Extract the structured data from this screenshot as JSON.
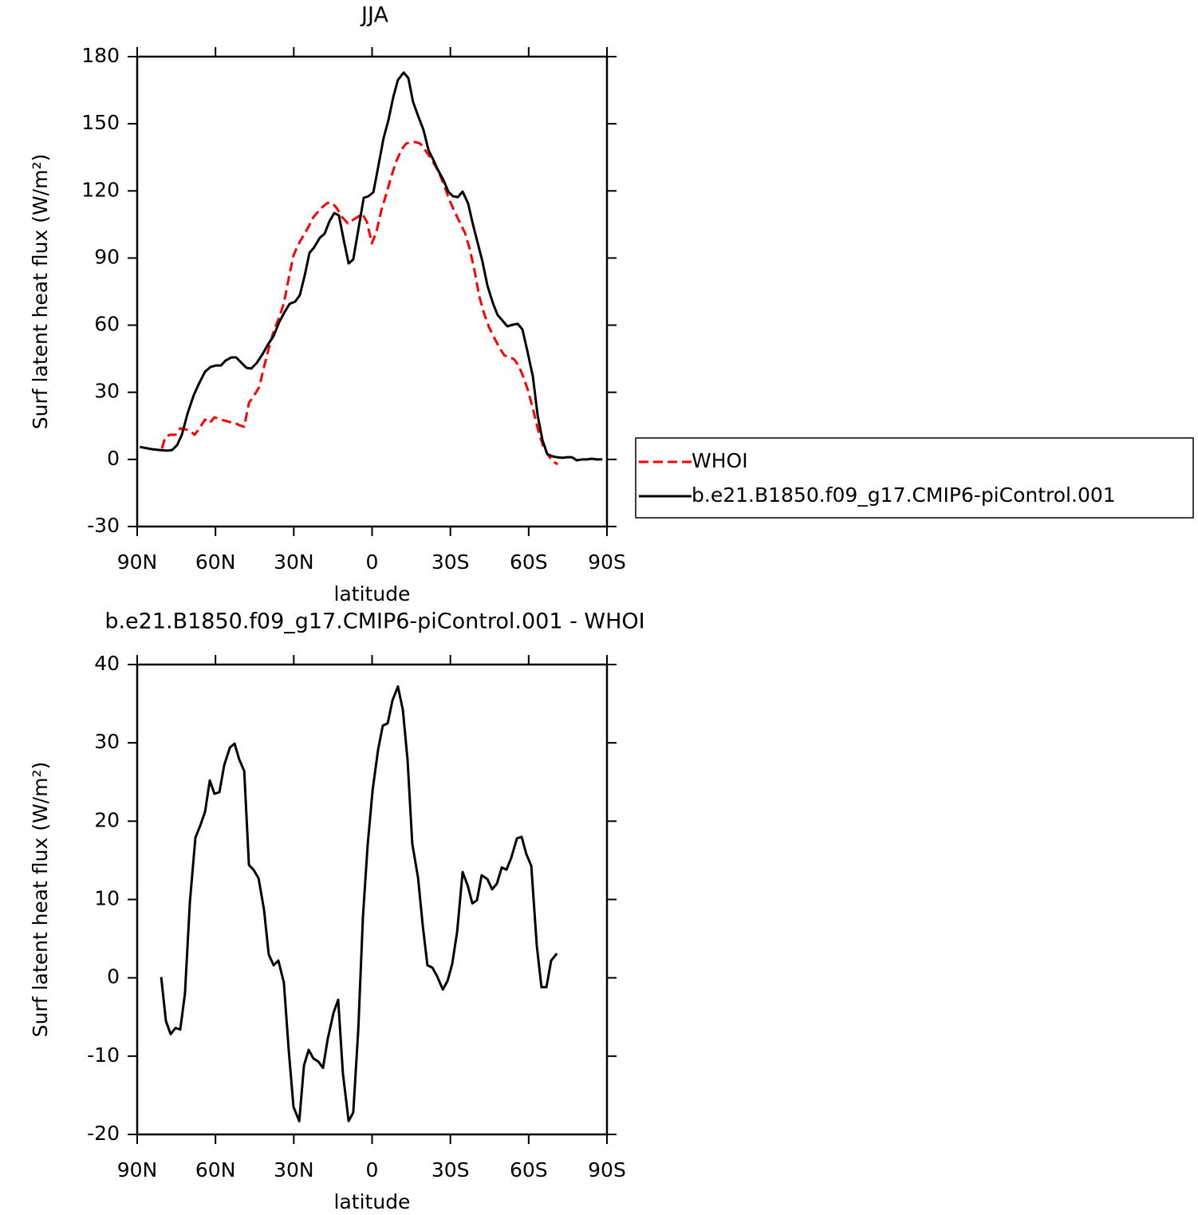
{
  "chart_data": [
    {
      "type": "line",
      "title": "JJA",
      "x_label": "latitude",
      "y_label": "Surf latent heat flux (W/m²)",
      "xlim": [
        90,
        -90
      ],
      "xticks": [
        {
          "value": 90,
          "label": "90N"
        },
        {
          "value": 60,
          "label": "60N"
        },
        {
          "value": 30,
          "label": "30N"
        },
        0,
        {
          "value": -30,
          "label": "30S"
        },
        {
          "value": -60,
          "label": "60S"
        },
        {
          "value": -90,
          "label": "90S"
        }
      ],
      "ylim": [
        -30,
        180
      ],
      "yticks": [
        -30,
        0,
        30,
        60,
        90,
        120,
        150,
        180
      ],
      "legend": "right",
      "series": [
        {
          "name": "WHOI",
          "color": "#ff0000",
          "line_style": "dashed",
          "x": [
            80.5,
            79.3,
            77.5,
            75.3,
            73.5,
            71.7,
            69.8,
            68.0,
            66.2,
            64.0,
            62.2,
            60.4,
            58.5,
            56.7,
            54.5,
            52.7,
            50.9,
            49.0,
            47.2,
            45.4,
            43.2,
            41.4,
            39.6,
            37.7,
            35.6,
            33.8,
            31.9,
            30.1,
            28.2,
            26.4,
            24.3,
            22.5,
            20.6,
            18.8,
            17.0,
            15.1,
            13.3,
            11.5,
            9.3,
            7.5,
            5.6,
            3.8,
            2.0,
            0.1,
            -1.7,
            -3.5,
            -5.7,
            -7.5,
            -9.3,
            -11.2,
            -13.0,
            -14.8,
            -16.7,
            -18.5,
            -20.3,
            -22.5,
            -24.3,
            -26.1,
            -28.0,
            -29.8,
            -31.6,
            -33.8,
            -35.6,
            -37.4,
            -39.3,
            -41.1,
            -42.9,
            -44.8,
            -46.6,
            -48.8,
            -50.6,
            -52.4,
            -54.3,
            -56.1,
            -57.9,
            -59.8,
            -61.9,
            -63.7,
            -65.6,
            -67.4,
            -69.2,
            -71.1
          ],
          "values": [
            4.9,
            9.9,
            11,
            11,
            13.9,
            13.5,
            12.8,
            11,
            13.9,
            17.8,
            16.3,
            18.8,
            18.1,
            17.4,
            16.7,
            16.3,
            15.3,
            14.6,
            25.3,
            28.1,
            32.4,
            41.3,
            49.5,
            57.3,
            63.4,
            69.8,
            81.2,
            91.2,
            96.2,
            99.8,
            104.1,
            108.3,
            110.8,
            113,
            114.7,
            114.4,
            111.9,
            108.3,
            105.5,
            106.9,
            108.3,
            109.8,
            106.2,
            96.5,
            101.9,
            111.2,
            119.7,
            126.9,
            133.3,
            138.3,
            141.1,
            141.8,
            141.8,
            141.1,
            138.3,
            134.7,
            131.1,
            126.9,
            121.2,
            115.5,
            110.8,
            105.5,
            101.2,
            94.1,
            84.1,
            72.7,
            65.2,
            59.1,
            54.8,
            49.9,
            46.6,
            45.6,
            44.9,
            42,
            37,
            30.6,
            21.3,
            12.8,
            5.7,
            2.1,
            -0.8,
            -2.2
          ]
        },
        {
          "name": "b.e21.B1850.f09_g17.CMIP6-piControl.001",
          "color": "#000000",
          "line_style": "solid",
          "x": [
            89,
            84.5,
            81.4,
            78.4,
            76.6,
            74.7,
            72.9,
            70.7,
            68.3,
            66.2,
            64.0,
            61.9,
            59.7,
            57.9,
            56.1,
            53.9,
            52.1,
            50.0,
            48.1,
            46.3,
            44.2,
            42.0,
            39.9,
            37.7,
            35.6,
            33.5,
            31.6,
            29.5,
            27.7,
            25.8,
            24.0,
            22.2,
            20.0,
            18.2,
            16.3,
            14.5,
            12.7,
            10.8,
            9.0,
            7.2,
            5.3,
            3.2,
            1.4,
            -0.5,
            -2.3,
            -4.4,
            -6.3,
            -8.1,
            -9.9,
            -12.1,
            -13.9,
            -15.7,
            -17.6,
            -19.7,
            -21.6,
            -23.4,
            -25.2,
            -27.4,
            -29.2,
            -31.0,
            -32.9,
            -34.7,
            -36.8,
            -38.7,
            -40.5,
            -42.3,
            -44.2,
            -46.3,
            -48.1,
            -50.0,
            -51.8,
            -54.0,
            -55.8,
            -57.6,
            -59.5,
            -61.6,
            -63.4,
            -65.3,
            -67.1,
            -69.0,
            -70.8,
            -72.9,
            -74.7,
            -76.6,
            -78.4,
            -80.5,
            -82.4,
            -84.2,
            -86.0,
            -88.2
          ],
          "values": [
            5.6,
            4.6,
            4.2,
            3.9,
            4.2,
            6.4,
            11,
            20.6,
            28.8,
            34.2,
            39.2,
            41.3,
            42,
            42,
            44.2,
            45.6,
            45.6,
            43.1,
            40.9,
            40.6,
            43.1,
            47,
            51.3,
            55.2,
            61.3,
            65.9,
            69.5,
            70.5,
            73.4,
            82.3,
            92.3,
            94.8,
            99.1,
            100.8,
            106.5,
            110.1,
            109,
            97.6,
            87.6,
            89.4,
            102.6,
            116.9,
            117.6,
            119.4,
            130.4,
            143.6,
            151.8,
            161.8,
            169.6,
            172.9,
            170.4,
            159.7,
            153.6,
            147.2,
            138.3,
            134,
            129.4,
            124.7,
            119.7,
            117.6,
            117.2,
            119.7,
            114.4,
            104.8,
            96.6,
            88.4,
            77.7,
            69.8,
            64.5,
            62,
            59.5,
            60.2,
            60.6,
            58.1,
            48.4,
            37,
            19.9,
            8.5,
            2.4,
            1.4,
            1,
            0.7,
            1,
            1,
            -0.4,
            0,
            0,
            0.3,
            0,
            0
          ]
        }
      ]
    },
    {
      "type": "line",
      "title": "b.e21.B1850.f09_g17.CMIP6-piControl.001 - WHOI",
      "x_label": "latitude",
      "y_label": "Surf latent heat flux (W/m²)",
      "xlim": [
        90,
        -90
      ],
      "xticks": [
        {
          "value": 90,
          "label": "90N"
        },
        {
          "value": 60,
          "label": "60N"
        },
        {
          "value": 30,
          "label": "30N"
        },
        0,
        {
          "value": -30,
          "label": "30S"
        },
        {
          "value": -60,
          "label": "60S"
        },
        {
          "value": -90,
          "label": "90S"
        }
      ],
      "ylim": [
        -20,
        40
      ],
      "yticks": [
        -20,
        -10,
        0,
        10,
        20,
        30,
        40
      ],
      "series": [
        {
          "color": "#000000",
          "line_style": "solid",
          "x": [
            80.8,
            79.0,
            77.2,
            75.3,
            73.5,
            71.7,
            69.8,
            67.7,
            65.9,
            64.0,
            62.2,
            60.4,
            58.5,
            56.7,
            54.5,
            52.7,
            50.9,
            49.0,
            47.2,
            45.4,
            43.5,
            41.4,
            39.6,
            37.7,
            35.9,
            33.8,
            31.9,
            30.1,
            27.9,
            26.1,
            24.3,
            22.5,
            20.6,
            18.8,
            17.0,
            14.8,
            13.0,
            11.2,
            9.0,
            7.2,
            5.3,
            3.5,
            1.7,
            -0.2,
            -2.3,
            -4.1,
            -6.0,
            -7.8,
            -9.9,
            -11.8,
            -13.6,
            -15.4,
            -17.6,
            -19.4,
            -21.2,
            -23.1,
            -24.9,
            -27.1,
            -28.9,
            -30.7,
            -32.6,
            -34.7,
            -36.6,
            -38.4,
            -40.2,
            -42.0,
            -44.2,
            -46.0,
            -47.8,
            -49.7,
            -51.5,
            -53.3,
            -55.5,
            -57.3,
            -59.1,
            -61.0,
            -63.1,
            -64.9,
            -66.8,
            -68.6,
            -70.8
          ],
          "values": [
            0.1,
            -5.5,
            -7.2,
            -6.4,
            -6.6,
            -2.0,
            9.7,
            17.9,
            19.4,
            21.2,
            25.2,
            23.5,
            23.7,
            27.1,
            29.4,
            29.9,
            27.9,
            26.4,
            14.4,
            13.8,
            12.7,
            8.7,
            3.0,
            1.6,
            2.2,
            -0.6,
            -9.4,
            -16.5,
            -18.3,
            -11.2,
            -9.2,
            -10.3,
            -10.7,
            -11.5,
            -7.8,
            -4.5,
            -2.8,
            -12.2,
            -18.3,
            -17.2,
            -6.6,
            7.7,
            16.9,
            24.0,
            29.1,
            32.2,
            32.5,
            35.4,
            37.2,
            34.2,
            27.8,
            17.1,
            12.8,
            6.7,
            1.6,
            1.3,
            0.2,
            -1.5,
            -0.4,
            1.8,
            5.9,
            13.5,
            11.8,
            9.5,
            9.9,
            13.1,
            12.6,
            11.3,
            12.0,
            14.1,
            13.8,
            15.3,
            17.8,
            18.0,
            15.8,
            14.3,
            4.1,
            -1.2,
            -1.2,
            2.2,
            3.1
          ]
        }
      ]
    }
  ]
}
